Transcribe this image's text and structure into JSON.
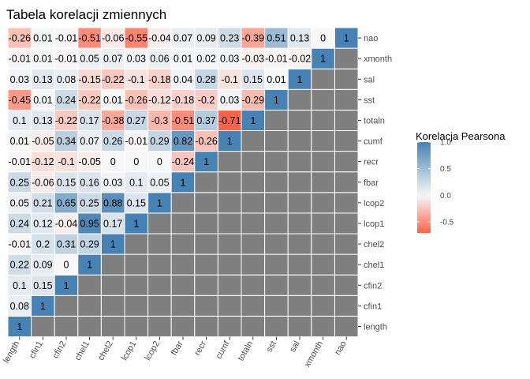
{
  "chart_data": {
    "type": "heatmap",
    "title": "Tabela korelacji zmiennych",
    "variables": [
      "length",
      "cfin1",
      "cfin2",
      "chel1",
      "chel2",
      "lcop1",
      "lcop2",
      "fbar",
      "recr",
      "cumf",
      "totaln",
      "sst",
      "sal",
      "xmonth",
      "nao"
    ],
    "matrix": [
      [
        1,
        0.08,
        0.1,
        0.22,
        -0.01,
        0.24,
        0.05,
        0.25,
        -0.01,
        0.01,
        0.1,
        -0.45,
        0.03,
        -0.01,
        -0.26
      ],
      [
        null,
        1,
        0.15,
        0.09,
        0.2,
        0.12,
        0.21,
        -0.06,
        -0.12,
        -0.05,
        0.13,
        0.01,
        0.13,
        0.01,
        0.01
      ],
      [
        null,
        null,
        1,
        0,
        0.31,
        -0.04,
        0.65,
        0.15,
        -0.1,
        0.34,
        -0.22,
        0.24,
        0.08,
        -0.01,
        -0.01
      ],
      [
        null,
        null,
        null,
        1,
        0.29,
        0.95,
        0.25,
        0.16,
        -0.05,
        0.07,
        0.17,
        -0.22,
        -0.15,
        0.05,
        -0.51
      ],
      [
        null,
        null,
        null,
        null,
        1,
        0.17,
        0.88,
        0.03,
        0,
        0.26,
        -0.38,
        0.01,
        -0.22,
        0.07,
        -0.06
      ],
      [
        null,
        null,
        null,
        null,
        null,
        1,
        0.15,
        0.1,
        0,
        -0.01,
        0.27,
        -0.26,
        -0.1,
        0.03,
        -0.55
      ],
      [
        null,
        null,
        null,
        null,
        null,
        null,
        1,
        0.05,
        0,
        0.29,
        -0.3,
        -0.12,
        -0.18,
        0.06,
        -0.04
      ],
      [
        null,
        null,
        null,
        null,
        null,
        null,
        null,
        1,
        -0.24,
        0.82,
        -0.51,
        -0.18,
        0.04,
        0.01,
        0.07
      ],
      [
        null,
        null,
        null,
        null,
        null,
        null,
        null,
        null,
        1,
        -0.26,
        0.37,
        -0.2,
        0.28,
        0.02,
        0.09
      ],
      [
        null,
        null,
        null,
        null,
        null,
        null,
        null,
        null,
        null,
        1,
        -0.71,
        0.03,
        -0.1,
        0.03,
        0.23
      ],
      [
        null,
        null,
        null,
        null,
        null,
        null,
        null,
        null,
        null,
        null,
        1,
        -0.29,
        0.15,
        -0.03,
        -0.39
      ],
      [
        null,
        null,
        null,
        null,
        null,
        null,
        null,
        null,
        null,
        null,
        null,
        1,
        0.01,
        -0.01,
        0.51
      ],
      [
        null,
        null,
        null,
        null,
        null,
        null,
        null,
        null,
        null,
        null,
        null,
        null,
        1,
        -0.02,
        0.13
      ],
      [
        null,
        null,
        null,
        null,
        null,
        null,
        null,
        null,
        null,
        null,
        null,
        null,
        null,
        1,
        0
      ],
      [
        null,
        null,
        null,
        null,
        null,
        null,
        null,
        null,
        null,
        null,
        null,
        null,
        null,
        null,
        1
      ]
    ],
    "missing_color": "#7f7f7f",
    "colors": {
      "high": "#4682b4",
      "mid": "#f7f7f7",
      "low": "#ff6347"
    },
    "limits": [
      -0.71,
      1
    ],
    "legend": {
      "title": "Korelacja Pearsona",
      "labels": [
        "1.0",
        "0.5",
        "0.0",
        "-0.5"
      ],
      "values": [
        1.0,
        0.5,
        0.0,
        -0.5
      ],
      "position": "right"
    }
  }
}
